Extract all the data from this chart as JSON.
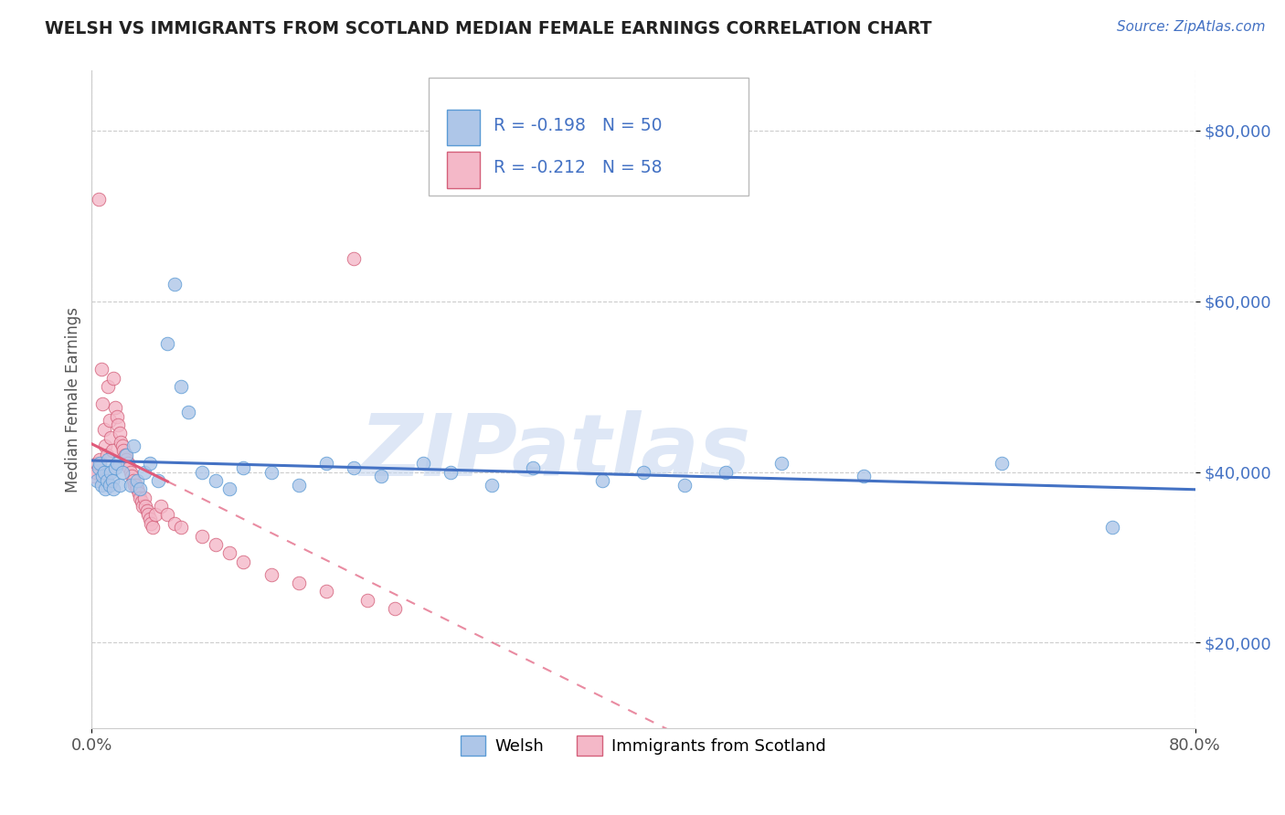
{
  "title": "WELSH VS IMMIGRANTS FROM SCOTLAND MEDIAN FEMALE EARNINGS CORRELATION CHART",
  "source": "Source: ZipAtlas.com",
  "watermark": "ZIPatlas",
  "ylabel": "Median Female Earnings",
  "xlim": [
    0.0,
    0.8
  ],
  "ylim": [
    10000,
    87000
  ],
  "xtick_labels": [
    "0.0%",
    "80.0%"
  ],
  "ytick_values": [
    20000,
    40000,
    60000,
    80000
  ],
  "grid_color": "#cccccc",
  "background_color": "#ffffff",
  "welsh_color": "#aec6e8",
  "welsh_edge_color": "#5b9bd5",
  "scotland_color": "#f4b8c8",
  "scotland_edge_color": "#d4607a",
  "welsh_line_color": "#4472c4",
  "scotland_line_color": "#e05a7a",
  "welsh_r": -0.198,
  "welsh_n": 50,
  "scotland_r": -0.212,
  "scotland_n": 58,
  "legend_label_welsh": "Welsh",
  "legend_label_scotland": "Immigrants from Scotland",
  "welsh_x": [
    0.004,
    0.005,
    0.006,
    0.007,
    0.008,
    0.009,
    0.01,
    0.011,
    0.012,
    0.013,
    0.014,
    0.015,
    0.016,
    0.017,
    0.018,
    0.02,
    0.022,
    0.025,
    0.028,
    0.03,
    0.033,
    0.035,
    0.038,
    0.042,
    0.048,
    0.055,
    0.06,
    0.065,
    0.07,
    0.08,
    0.09,
    0.1,
    0.11,
    0.13,
    0.15,
    0.17,
    0.19,
    0.21,
    0.24,
    0.26,
    0.29,
    0.32,
    0.37,
    0.4,
    0.43,
    0.46,
    0.5,
    0.56,
    0.66,
    0.74
  ],
  "welsh_y": [
    39000,
    40500,
    41000,
    38500,
    39500,
    40000,
    38000,
    39000,
    41500,
    38500,
    40000,
    39000,
    38000,
    40500,
    41000,
    38500,
    40000,
    42000,
    38500,
    43000,
    39000,
    38000,
    40000,
    41000,
    39000,
    55000,
    62000,
    50000,
    47000,
    40000,
    39000,
    38000,
    40500,
    40000,
    38500,
    41000,
    40500,
    39500,
    41000,
    40000,
    38500,
    40500,
    39000,
    40000,
    38500,
    40000,
    41000,
    39500,
    41000,
    33500
  ],
  "scotland_x": [
    0.002,
    0.003,
    0.004,
    0.005,
    0.006,
    0.007,
    0.008,
    0.009,
    0.01,
    0.011,
    0.012,
    0.013,
    0.014,
    0.015,
    0.016,
    0.017,
    0.018,
    0.019,
    0.02,
    0.021,
    0.022,
    0.023,
    0.024,
    0.025,
    0.026,
    0.027,
    0.028,
    0.029,
    0.03,
    0.031,
    0.032,
    0.033,
    0.034,
    0.035,
    0.036,
    0.037,
    0.038,
    0.039,
    0.04,
    0.041,
    0.042,
    0.043,
    0.044,
    0.046,
    0.05,
    0.055,
    0.06,
    0.065,
    0.08,
    0.09,
    0.1,
    0.11,
    0.13,
    0.15,
    0.17,
    0.2,
    0.22,
    0.19
  ],
  "scotland_y": [
    39500,
    40000,
    41000,
    72000,
    41500,
    52000,
    48000,
    45000,
    43000,
    42000,
    50000,
    46000,
    44000,
    42500,
    51000,
    47500,
    46500,
    45500,
    44500,
    43500,
    43000,
    42500,
    42000,
    41500,
    41000,
    40500,
    40000,
    39500,
    39000,
    38500,
    38500,
    38000,
    37500,
    37000,
    36500,
    36000,
    37000,
    36000,
    35500,
    35000,
    34500,
    34000,
    33500,
    35000,
    36000,
    35000,
    34000,
    33500,
    32500,
    31500,
    30500,
    29500,
    28000,
    27000,
    26000,
    25000,
    24000,
    65000
  ]
}
